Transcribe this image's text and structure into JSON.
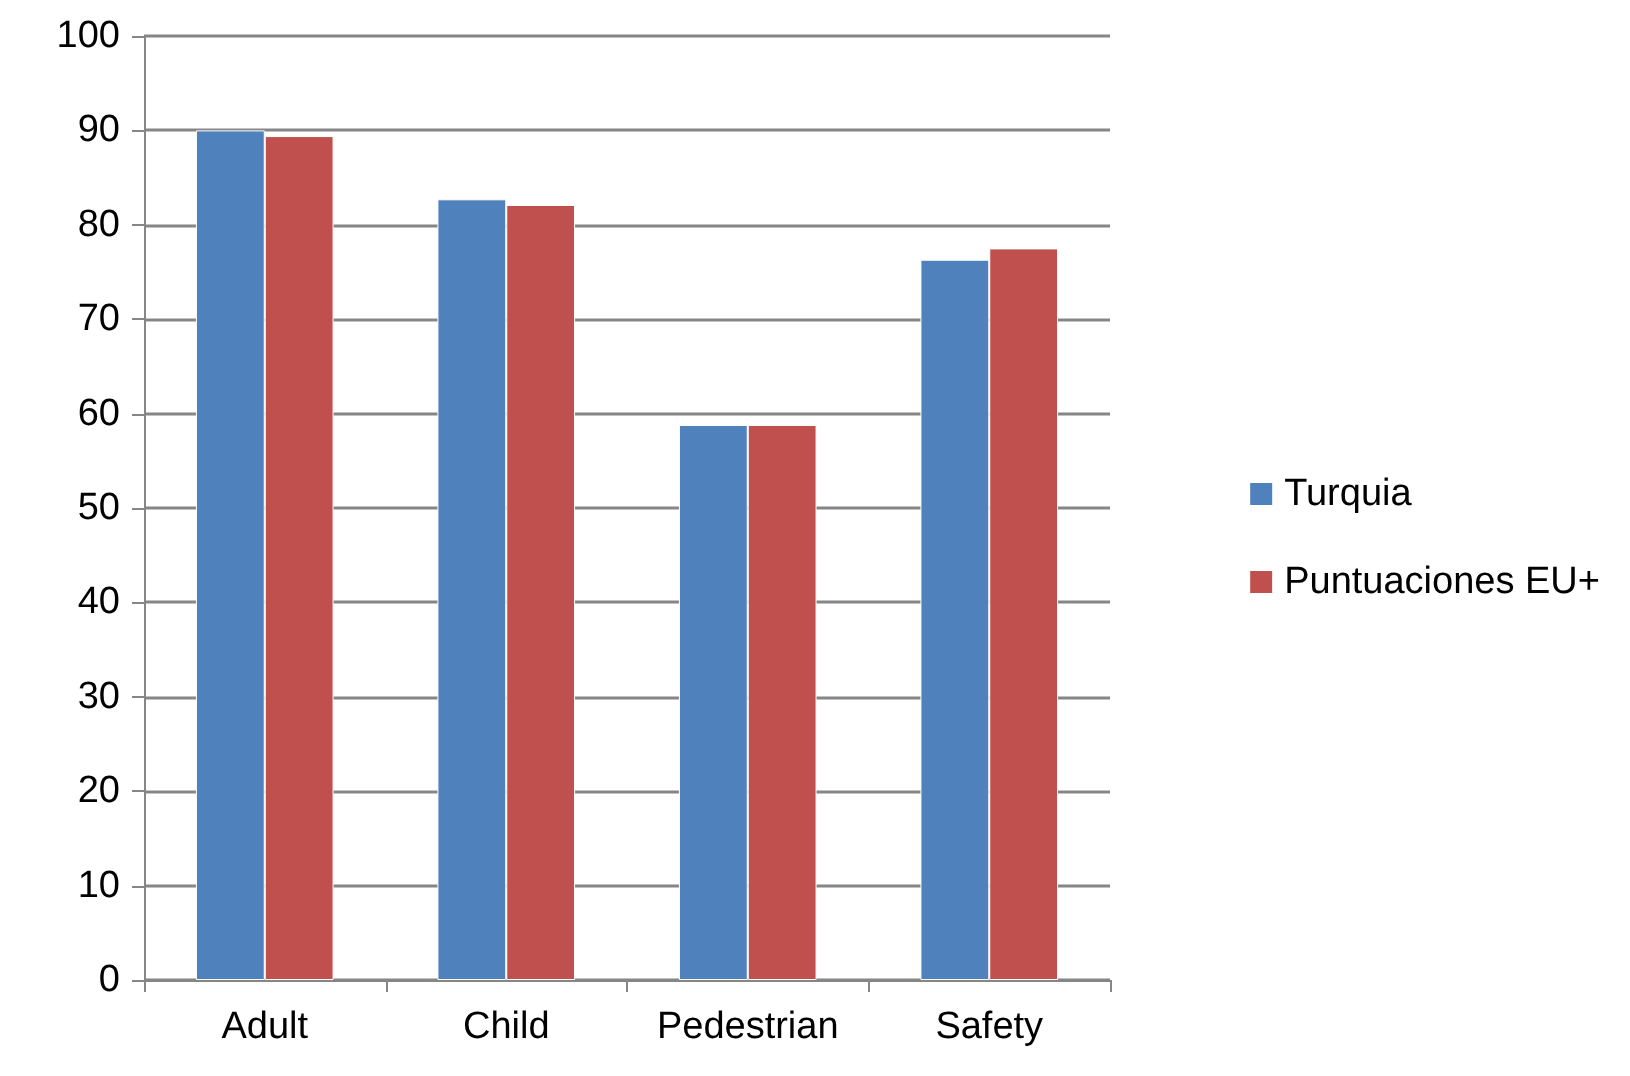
{
  "chart_data": {
    "type": "bar",
    "categories": [
      "Adult",
      "Child",
      "Pedestrian",
      "Safety"
    ],
    "series": [
      {
        "name": "Turquia",
        "color": "#4f81bd",
        "values": [
          90,
          82.7,
          58.8,
          76.3
        ]
      },
      {
        "name": "Puntuaciones EU+",
        "color": "#c0504d",
        "values": [
          89.4,
          82.1,
          58.8,
          77.5
        ]
      }
    ],
    "ylim": [
      0,
      100
    ],
    "yticks": [
      0,
      10,
      20,
      30,
      40,
      50,
      60,
      70,
      80,
      90,
      100
    ],
    "grid": "y",
    "legend": "right"
  }
}
